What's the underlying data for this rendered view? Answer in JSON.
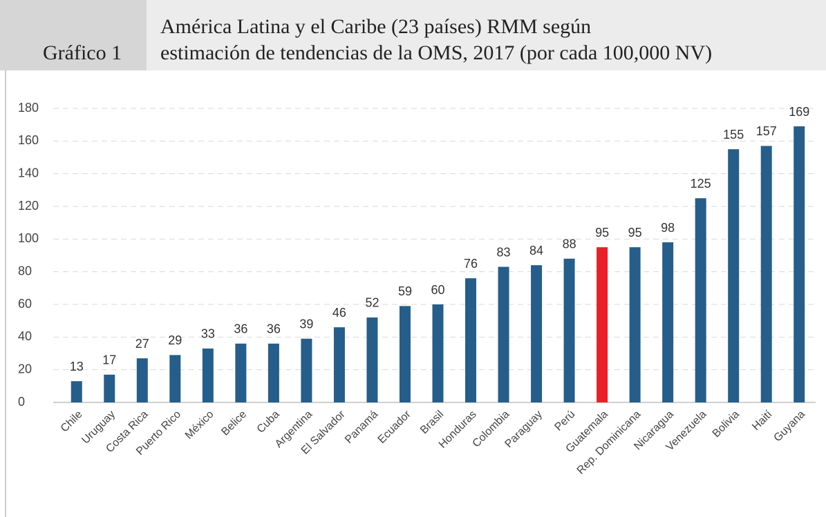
{
  "chart_data": {
    "type": "bar",
    "label": "Gráfico 1",
    "title": [
      "América Latina  y el Caribe (23 países) RMM según",
      "estimación de tendencias de la OMS, 2017 (por cada 100,000 NV)"
    ],
    "categories": [
      "Chile",
      "Uruguay",
      "Costa Rica",
      "Puerto Rico",
      "México",
      "Belice",
      "Cuba",
      "Argentina",
      "El Salvador",
      "Panamá",
      "Ecuador",
      "Brasil",
      "Honduras",
      "Colombia",
      "Paraguay",
      "Perú",
      "Guatemala",
      "Rep. Dominicana",
      "Nicaragua",
      "Venezuela",
      "Bolivia",
      "Haití",
      "Guyana"
    ],
    "values": [
      13,
      17,
      27,
      29,
      33,
      36,
      36,
      39,
      46,
      52,
      59,
      60,
      76,
      83,
      84,
      88,
      95,
      95,
      98,
      125,
      155,
      157,
      169
    ],
    "colors": [
      "#255e8a",
      "#255e8a",
      "#255e8a",
      "#255e8a",
      "#255e8a",
      "#255e8a",
      "#255e8a",
      "#255e8a",
      "#255e8a",
      "#255e8a",
      "#255e8a",
      "#255e8a",
      "#255e8a",
      "#255e8a",
      "#255e8a",
      "#255e8a",
      "#ea1f27",
      "#255e8a",
      "#255e8a",
      "#255e8a",
      "#255e8a",
      "#255e8a",
      "#255e8a"
    ],
    "ylim": [
      0,
      180
    ],
    "yticks": [
      0,
      20,
      40,
      60,
      80,
      100,
      120,
      140,
      160,
      180
    ],
    "grid": true
  }
}
